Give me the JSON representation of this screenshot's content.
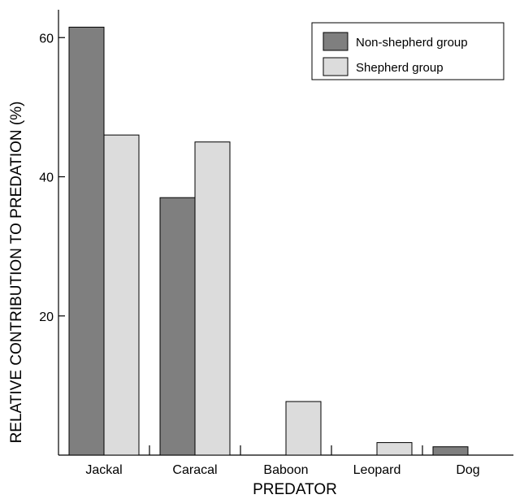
{
  "chart_data": {
    "type": "bar",
    "title": "",
    "xlabel": "PREDATOR",
    "ylabel": "RELATIVE CONTRIBUTION TO PREDATION (%)",
    "categories": [
      "Jackal",
      "Caracal",
      "Baboon",
      "Leopard",
      "Dog"
    ],
    "series": [
      {
        "name": "Non-shepherd group",
        "values": [
          61.5,
          37,
          0,
          0,
          1.2
        ],
        "color": "#7f7f7f"
      },
      {
        "name": "Shepherd group",
        "values": [
          46,
          45,
          7.7,
          1.8,
          0
        ],
        "color": "#dcdcdc"
      }
    ],
    "ylim": [
      0,
      64
    ],
    "yticks": [
      20,
      40,
      60
    ],
    "grid": false,
    "legend": "top-right"
  }
}
